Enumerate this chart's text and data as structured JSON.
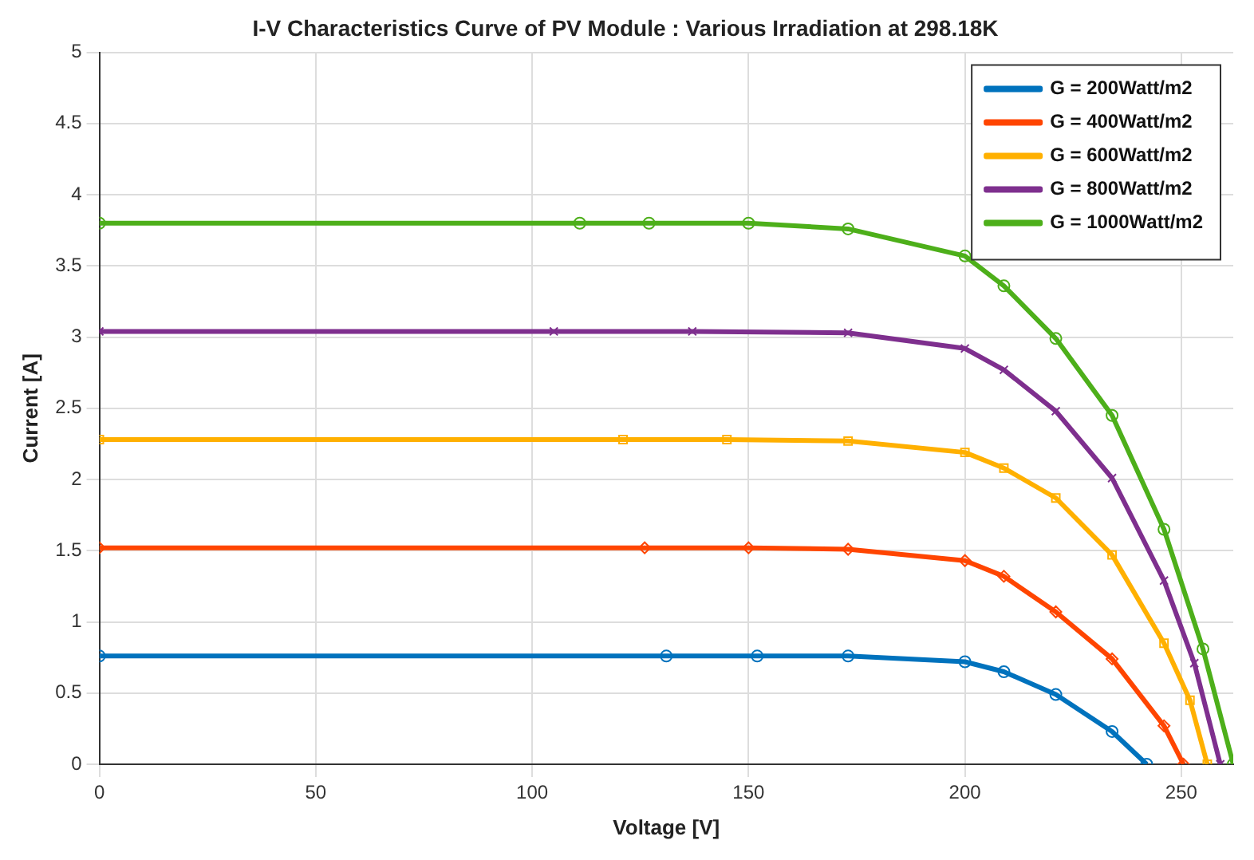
{
  "chart_data": {
    "type": "line",
    "title": "I-V Characteristics Curve of PV Module : Various Irradiation at 298.18K",
    "xlabel": "Voltage [V]",
    "ylabel": "Current [A]",
    "xlim": [
      0,
      262
    ],
    "xticks": [
      0,
      50,
      100,
      150,
      200,
      250
    ],
    "ylim": [
      0,
      5
    ],
    "yticks": [
      0,
      0.5,
      1,
      1.5,
      2,
      2.5,
      3,
      3.5,
      4,
      4.5,
      5
    ],
    "grid": true,
    "legend": "top right",
    "line_style": "solid",
    "series": [
      {
        "name": "G = 200Watt/m2",
        "color": "#0072bd",
        "marker": "circle",
        "x": [
          0,
          131,
          152,
          173,
          200,
          209,
          221,
          234,
          242
        ],
        "values": [
          0.76,
          0.76,
          0.76,
          0.76,
          0.72,
          0.65,
          0.49,
          0.23,
          0
        ]
      },
      {
        "name": "G = 400Watt/m2",
        "color": "#ff4500",
        "marker": "diamond",
        "x": [
          0,
          126,
          150,
          173,
          200,
          209,
          221,
          234,
          246,
          250.5
        ],
        "values": [
          1.52,
          1.52,
          1.52,
          1.51,
          1.43,
          1.32,
          1.07,
          0.74,
          0.27,
          0
        ]
      },
      {
        "name": "G = 600Watt/m2",
        "color": "#ffb000",
        "marker": "square",
        "x": [
          0,
          121,
          145,
          173,
          200,
          209,
          221,
          234,
          246,
          252,
          256
        ],
        "values": [
          2.28,
          2.28,
          2.28,
          2.27,
          2.19,
          2.08,
          1.87,
          1.47,
          0.85,
          0.45,
          0
        ]
      },
      {
        "name": "G = 800Watt/m2",
        "color": "#7e2f8e",
        "marker": "cross",
        "x": [
          0,
          105,
          137,
          173,
          200,
          209,
          221,
          234,
          246,
          253,
          259
        ],
        "values": [
          3.04,
          3.04,
          3.04,
          3.03,
          2.92,
          2.77,
          2.48,
          2.01,
          1.29,
          0.71,
          0
        ]
      },
      {
        "name": "G = 1000Watt/m2",
        "color": "#4daf1a",
        "marker": "circle",
        "x": [
          0,
          111,
          127,
          150,
          173,
          200,
          209,
          221,
          234,
          246,
          255,
          262
        ],
        "values": [
          3.8,
          3.8,
          3.8,
          3.8,
          3.76,
          3.57,
          3.36,
          2.99,
          2.45,
          1.65,
          0.81,
          0
        ]
      }
    ]
  }
}
